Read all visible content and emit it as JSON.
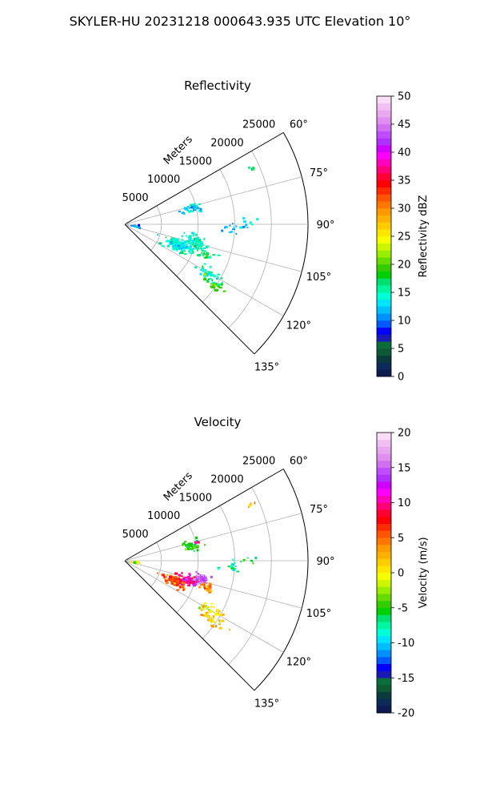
{
  "figure": {
    "title": "SKYLER-HU  20231218  000643.935 UTC Elevation 10°"
  },
  "chart_data": [
    {
      "type": "polar-sector",
      "title": "Reflectivity",
      "range_label": "Meters",
      "theta_range_deg": [
        60,
        135
      ],
      "r_max_m": 25000,
      "r_ticks": [
        5000,
        10000,
        15000,
        20000,
        25000
      ],
      "theta_ticks_deg": [
        60,
        75,
        90,
        105,
        120,
        135
      ],
      "theta_tick_labels": [
        "60°",
        "75°",
        "90°",
        "105°",
        "120°",
        "135°"
      ],
      "grid": true,
      "colorbar": {
        "label": "Reflectivity dBZ",
        "min": 0,
        "max": 50,
        "ticks": [
          0,
          5,
          10,
          15,
          20,
          25,
          30,
          35,
          40,
          45,
          50
        ],
        "colors": [
          "#0d1a4d",
          "#0c2a5a",
          "#0b3b3b",
          "#0d5a35",
          "#0a6e3a",
          "#1a1ab5",
          "#0000ff",
          "#0059ff",
          "#0090ff",
          "#00bfff",
          "#00e5ff",
          "#00ffd5",
          "#00f5a0",
          "#00e070",
          "#00d000",
          "#33cc00",
          "#66dd00",
          "#99ee00",
          "#ccf500",
          "#f5ff00",
          "#ffe600",
          "#ffcc00",
          "#ffb000",
          "#ff9900",
          "#ff7700",
          "#ff5500",
          "#ff2a00",
          "#ff0000",
          "#ff0033",
          "#ff0077",
          "#ff00bb",
          "#ff00ff",
          "#d000ff",
          "#b030ff",
          "#c04cff",
          "#d070f0",
          "#e08ef0",
          "#e8a8f0",
          "#f0c0f5",
          "#f8dcf8"
        ]
      },
      "clusters": [
        {
          "az": 77.5,
          "r": 9500,
          "n": 30,
          "sa": 2.0,
          "sr": 700,
          "v": 13
        },
        {
          "az": 66,
          "r": 19000,
          "n": 5,
          "sa": 0.5,
          "sr": 300,
          "v": 17
        },
        {
          "az": 92.5,
          "r": 14500,
          "n": 14,
          "sa": 1.6,
          "sr": 900,
          "v": 11
        },
        {
          "az": 89,
          "r": 17000,
          "n": 6,
          "sa": 1.0,
          "sr": 500,
          "v": 14
        },
        {
          "az": 100,
          "r": 1500,
          "n": 10,
          "sa": 2.5,
          "sr": 400,
          "v": 10
        },
        {
          "az": 111,
          "r": 7800,
          "n": 130,
          "sa": 3.2,
          "sr": 900,
          "v": 14
        },
        {
          "az": 104,
          "r": 10000,
          "n": 60,
          "sa": 2.5,
          "sr": 700,
          "v": 15
        },
        {
          "az": 110,
          "r": 11500,
          "n": 30,
          "sa": 2.0,
          "sr": 900,
          "v": 16
        },
        {
          "az": 120,
          "r": 13500,
          "n": 30,
          "sa": 1.7,
          "sr": 1200,
          "v": 15
        },
        {
          "az": 124,
          "r": 14500,
          "n": 30,
          "sa": 1.4,
          "sr": 1000,
          "v": 19
        },
        {
          "az": 76,
          "r": 10000,
          "n": 3,
          "sa": 1.0,
          "sr": 200,
          "v": 12
        }
      ]
    },
    {
      "type": "polar-sector",
      "title": "Velocity",
      "range_label": "Meters",
      "theta_range_deg": [
        60,
        135
      ],
      "r_max_m": 25000,
      "r_ticks": [
        5000,
        10000,
        15000,
        20000,
        25000
      ],
      "theta_ticks_deg": [
        60,
        75,
        90,
        105,
        120,
        135
      ],
      "theta_tick_labels": [
        "60°",
        "75°",
        "90°",
        "105°",
        "120°",
        "135°"
      ],
      "grid": true,
      "colorbar": {
        "label": "Velocity (m/s)",
        "min": -20,
        "max": 20,
        "ticks": [
          -20,
          -15,
          -10,
          -5,
          0,
          5,
          10,
          15,
          20
        ],
        "colors": [
          "#0d1a4d",
          "#0c2a5a",
          "#0b3b3b",
          "#0d5a35",
          "#0a6e3a",
          "#1a1ab5",
          "#0000ff",
          "#0059ff",
          "#0090ff",
          "#00bfff",
          "#00e5ff",
          "#00ffd5",
          "#00f5a0",
          "#00e070",
          "#00d000",
          "#33cc00",
          "#66dd00",
          "#99ee00",
          "#ccf500",
          "#f5ff00",
          "#ffe600",
          "#ffcc00",
          "#ffb000",
          "#ff9900",
          "#ff7700",
          "#ff5500",
          "#ff2a00",
          "#ff0000",
          "#ff0033",
          "#ff0077",
          "#ff00bb",
          "#ff00ff",
          "#d000ff",
          "#b030ff",
          "#c04cff",
          "#d070f0",
          "#e08ef0",
          "#e8a8f0",
          "#f0c0f5",
          "#f8dcf8"
        ]
      },
      "clusters": [
        {
          "az": 77.5,
          "r": 9500,
          "n": 30,
          "sa": 2.0,
          "sr": 700,
          "v": -5
        },
        {
          "az": 66,
          "r": 19000,
          "n": 5,
          "sa": 0.5,
          "sr": 300,
          "v": 1
        },
        {
          "az": 92.5,
          "r": 14500,
          "n": 14,
          "sa": 1.6,
          "sr": 900,
          "v": -8
        },
        {
          "az": 89,
          "r": 17000,
          "n": 6,
          "sa": 1.0,
          "sr": 500,
          "v": -6
        },
        {
          "az": 100,
          "r": 1500,
          "n": 10,
          "sa": 2.5,
          "sr": 400,
          "v": -2
        },
        {
          "az": 112,
          "r": 7300,
          "n": 90,
          "sa": 2.6,
          "sr": 800,
          "v": 6
        },
        {
          "az": 107,
          "r": 9200,
          "n": 80,
          "sa": 2.2,
          "sr": 700,
          "v": 10
        },
        {
          "az": 103,
          "r": 10600,
          "n": 50,
          "sa": 2.0,
          "sr": 600,
          "v": 15
        },
        {
          "az": 108,
          "r": 11700,
          "n": 25,
          "sa": 1.5,
          "sr": 700,
          "v": 4
        },
        {
          "az": 120,
          "r": 13500,
          "n": 30,
          "sa": 1.7,
          "sr": 1200,
          "v": 0
        },
        {
          "az": 124,
          "r": 14500,
          "n": 30,
          "sa": 1.4,
          "sr": 1000,
          "v": 2
        },
        {
          "az": 76,
          "r": 10000,
          "n": 3,
          "sa": 1.0,
          "sr": 200,
          "v": 8
        }
      ]
    }
  ]
}
